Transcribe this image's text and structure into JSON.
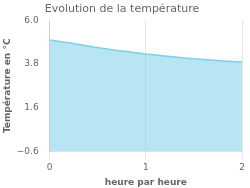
{
  "chart_data": {
    "type": "area",
    "title": "Evolution de la température",
    "x_label": "heure par heure",
    "y_label": "Température en °C",
    "x": [
      0.0,
      0.1,
      0.2,
      0.3,
      0.4,
      0.5,
      0.6,
      0.7,
      0.8,
      0.9,
      1.0,
      1.1,
      1.2,
      1.3,
      1.4,
      1.5,
      1.6,
      1.7,
      1.8,
      1.9,
      2.0
    ],
    "values": [
      5.0,
      4.93,
      4.86,
      4.78,
      4.7,
      4.62,
      4.55,
      4.48,
      4.42,
      4.36,
      4.3,
      4.25,
      4.2,
      4.15,
      4.1,
      4.06,
      4.02,
      3.98,
      3.95,
      3.92,
      3.9
    ],
    "color": "#7ecfe8",
    "xlim": [
      0,
      2
    ],
    "xticks": [
      0,
      1,
      2
    ],
    "ylim": [
      -0.6,
      6.0
    ],
    "yticks": [
      {
        "value": -0.6,
        "label": "−0.6"
      },
      1.6,
      3.8,
      {
        "value": 6.0,
        "label": "6.0"
      }
    ],
    "grid": "x"
  }
}
